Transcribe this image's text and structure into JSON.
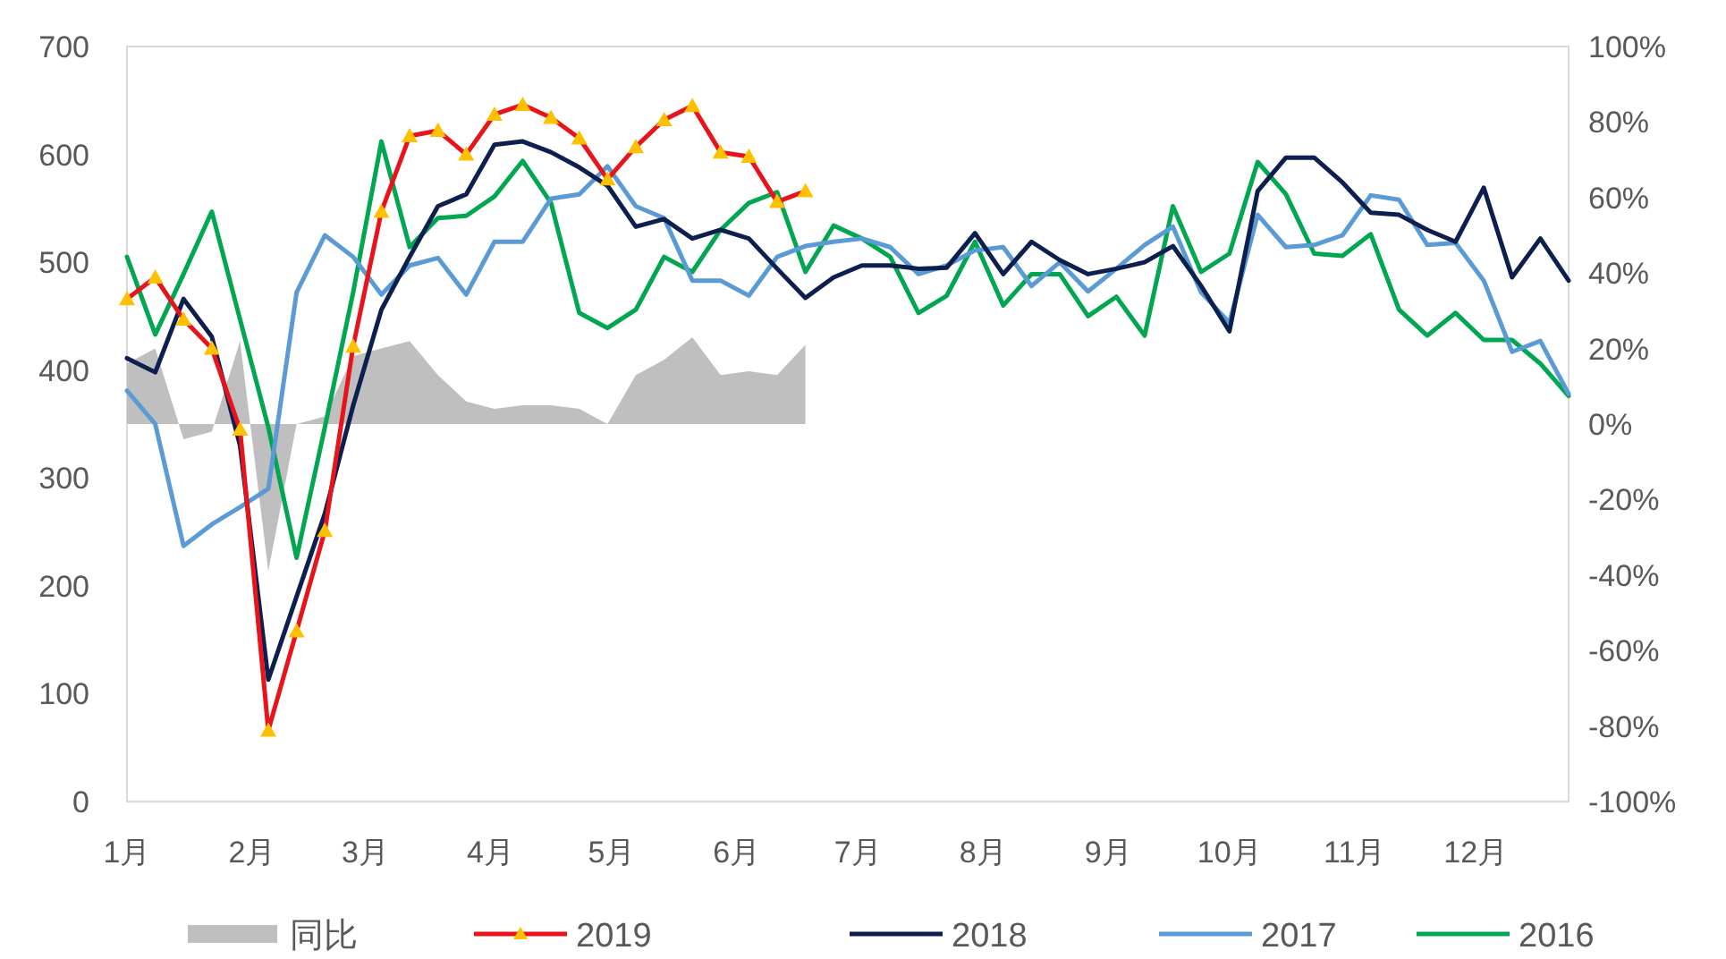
{
  "chart_data": {
    "type": "line",
    "x": [
      "--01-01",
      "--01-08",
      "--01-15",
      "--01-22",
      "--01-29",
      "--02-05",
      "--02-12",
      "--02-19",
      "--02-26",
      "--03-05",
      "--03-12",
      "--03-19",
      "--03-26",
      "--04-02",
      "--04-09",
      "--04-16",
      "--04-23",
      "--04-30",
      "--05-07",
      "--05-14",
      "--05-21",
      "--05-28",
      "--06-04",
      "--06-11",
      "--06-18",
      "--06-25",
      "--07-02",
      "--07-09",
      "--07-16",
      "--07-23",
      "--07-30",
      "--08-06",
      "--08-13",
      "--08-20",
      "--08-27",
      "--09-03",
      "--09-10",
      "--09-17",
      "--09-24",
      "--10-01",
      "--10-08",
      "--10-15",
      "--10-22",
      "--10-29",
      "--11-05",
      "--11-12",
      "--11-19",
      "--11-26",
      "--12-03",
      "--12-10",
      "--12-17",
      "--12-24"
    ],
    "xlim": [
      "--01-01",
      "--12-24"
    ],
    "xticks": [
      {
        "value": "--01-01",
        "label": "1月"
      },
      {
        "value": "--02-01",
        "label": "2月"
      },
      {
        "value": "--03-01",
        "label": "3月"
      },
      {
        "value": "--04-01",
        "label": "4月"
      },
      {
        "value": "--05-01",
        "label": "5月"
      },
      {
        "value": "--06-01",
        "label": "6月"
      },
      {
        "value": "--07-01",
        "label": "7月"
      },
      {
        "value": "--08-01",
        "label": "8月"
      },
      {
        "value": "--09-01",
        "label": "9月"
      },
      {
        "value": "--10-01",
        "label": "10月"
      },
      {
        "value": "--11-01",
        "label": "11月"
      },
      {
        "value": "--12-01",
        "label": "12月"
      }
    ],
    "ylim": [
      0,
      700
    ],
    "yticks": [
      0,
      100,
      200,
      300,
      400,
      500,
      600,
      700
    ],
    "y2lim": [
      -100,
      100
    ],
    "y2ticks": [
      {
        "value": -100,
        "label": "-100%"
      },
      {
        "value": -80,
        "label": "-80%"
      },
      {
        "value": -60,
        "label": "-60%"
      },
      {
        "value": -40,
        "label": "-40%"
      },
      {
        "value": -20,
        "label": "-20%"
      },
      {
        "value": 0,
        "label": "0%"
      },
      {
        "value": 20,
        "label": "20%"
      },
      {
        "value": 40,
        "label": "40%"
      },
      {
        "value": 60,
        "label": "60%"
      },
      {
        "value": 80,
        "label": "80%"
      },
      {
        "value": 100,
        "label": "100%"
      }
    ],
    "legend": "bottom",
    "series": [
      {
        "name": "同比",
        "type": "area",
        "axis": "y2",
        "color": "#bfbfbf",
        "values": [
          16,
          20,
          -4,
          -2,
          22,
          -39,
          0,
          2,
          18,
          20,
          22,
          13,
          6,
          4,
          5,
          5,
          4,
          0,
          13,
          17,
          23,
          13,
          14,
          13,
          21,
          null,
          null,
          null,
          null,
          null,
          null,
          null,
          null,
          null,
          null,
          null,
          null,
          null,
          null,
          null,
          null,
          null,
          null,
          null,
          null,
          null,
          null,
          null,
          null,
          null,
          null,
          null
        ]
      },
      {
        "name": "2019",
        "marker": "triangle",
        "color": "#e8141b",
        "values": [
          466,
          486,
          447,
          420,
          345,
          66,
          158,
          251,
          422,
          547,
          617,
          622,
          600,
          637,
          646,
          634,
          615,
          577,
          607,
          632,
          645,
          602,
          598,
          556,
          566,
          null,
          null,
          null,
          null,
          null,
          null,
          null,
          null,
          null,
          null,
          null,
          null,
          null,
          null,
          null,
          null,
          null,
          null,
          null,
          null,
          null,
          null,
          null,
          null,
          null,
          null,
          null
        ]
      },
      {
        "name": "2018",
        "color": "#0d1f4e",
        "values": [
          411,
          398,
          466,
          431,
          330,
          113,
          190,
          267,
          367,
          456,
          505,
          552,
          563,
          609,
          612,
          602,
          588,
          571,
          533,
          540,
          522,
          530,
          522,
          494,
          467,
          486,
          497,
          497,
          494,
          495,
          527,
          489,
          519,
          502,
          489,
          494,
          500,
          515,
          478,
          436,
          566,
          597,
          597,
          574,
          546,
          544,
          530,
          519,
          569,
          486,
          522,
          483
        ]
      },
      {
        "name": "2017",
        "color": "#5b9bd5",
        "values": [
          381,
          350,
          237,
          257,
          273,
          290,
          472,
          525,
          505,
          470,
          497,
          504,
          470,
          519,
          519,
          559,
          563,
          589,
          552,
          541,
          483,
          483,
          469,
          505,
          515,
          519,
          522,
          514,
          489,
          497,
          511,
          514,
          478,
          500,
          473,
          494,
          516,
          533,
          472,
          444,
          544,
          514,
          516,
          525,
          562,
          558,
          516,
          518,
          483,
          417,
          427,
          378
        ]
      },
      {
        "name": "2016",
        "color": "#00a650",
        "values": [
          505,
          433,
          489,
          547,
          447,
          347,
          226,
          347,
          472,
          612,
          514,
          541,
          543,
          561,
          594,
          555,
          453,
          439,
          456,
          505,
          491,
          530,
          555,
          565,
          491,
          534,
          522,
          505,
          453,
          469,
          519,
          460,
          489,
          489,
          450,
          468,
          432,
          552,
          491,
          508,
          593,
          563,
          508,
          506,
          526,
          456,
          432,
          453,
          428,
          428,
          406,
          376
        ]
      }
    ]
  }
}
